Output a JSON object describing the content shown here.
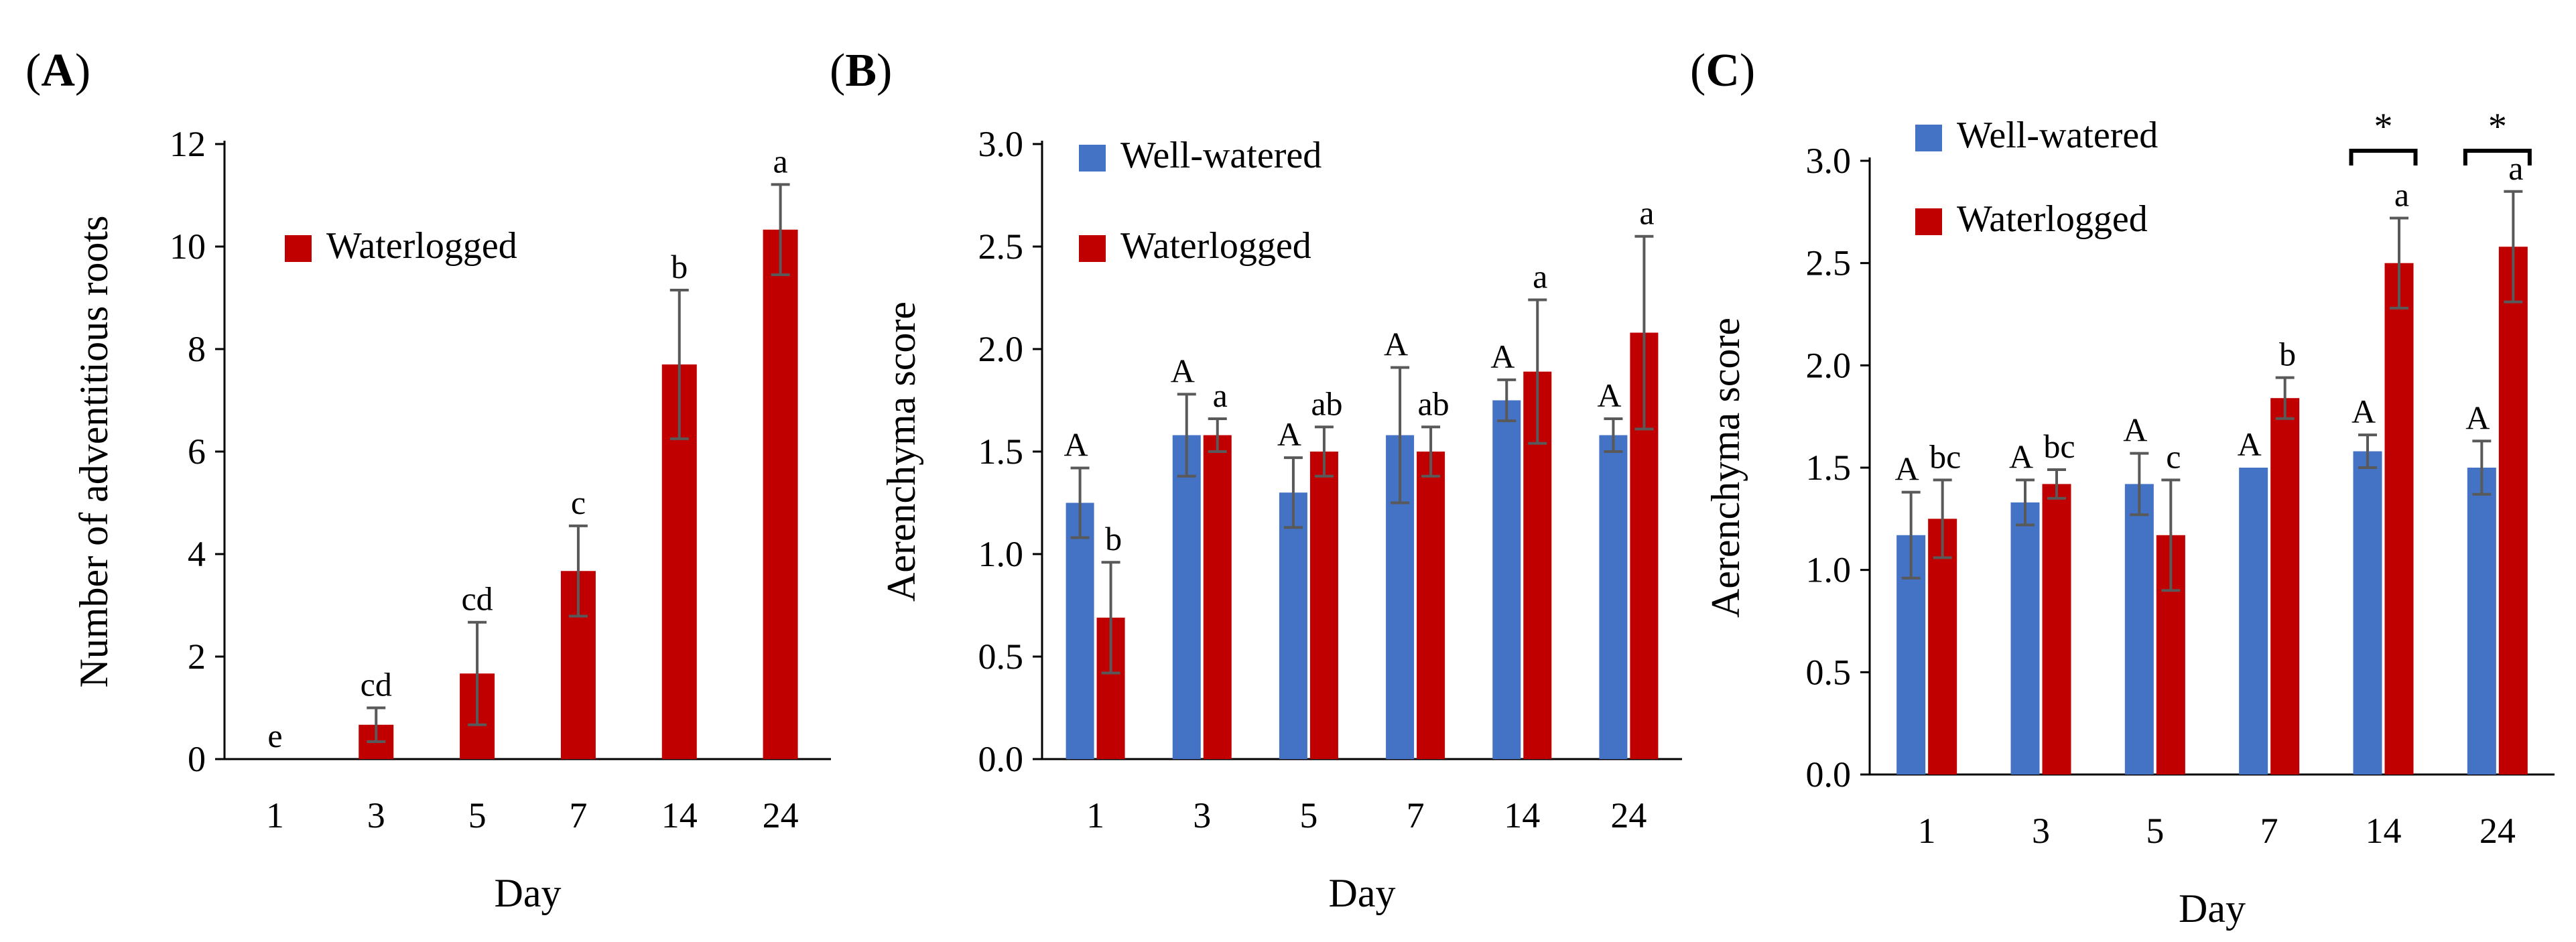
{
  "colors": {
    "well_watered": "#4472C4",
    "waterlogged": "#C00000",
    "error_bar": "#595959",
    "axis": "#000000"
  },
  "chart_data": [
    {
      "panel": "A",
      "type": "bar",
      "title": "",
      "xlabel": "Day",
      "ylabel": "Number of adventitious roots",
      "categories": [
        "1",
        "3",
        "5",
        "7",
        "14",
        "24"
      ],
      "ylim": [
        0,
        12
      ],
      "yticks": [
        "0",
        "2",
        "4",
        "6",
        "8",
        "10",
        "12"
      ],
      "legend_position": "upper-left",
      "series": [
        {
          "name": "Waterlogged",
          "color": "#C00000",
          "values": [
            0,
            0.67,
            1.67,
            3.67,
            7.7,
            10.33
          ],
          "errors": [
            0,
            0.33,
            1.0,
            0.88,
            1.45,
            0.88
          ],
          "letters": [
            "e",
            "cd",
            "cd",
            "c",
            "b",
            "a"
          ]
        }
      ],
      "annotations": []
    },
    {
      "panel": "B",
      "type": "bar",
      "title": "",
      "xlabel": "Day",
      "ylabel": "Aerenchyma score",
      "categories": [
        "1",
        "3",
        "5",
        "7",
        "14",
        "24"
      ],
      "ylim": [
        0,
        3
      ],
      "yticks": [
        "0.0",
        "0.5",
        "1.0",
        "1.5",
        "2.0",
        "2.5",
        "3.0"
      ],
      "legend_position": "upper-left",
      "series": [
        {
          "name": "Well-watered",
          "color": "#4472C4",
          "values": [
            1.25,
            1.58,
            1.3,
            1.58,
            1.75,
            1.58
          ],
          "errors": [
            0.17,
            0.2,
            0.17,
            0.33,
            0.1,
            0.08
          ],
          "letters": [
            "A",
            "A",
            "A",
            "A",
            "A",
            "A"
          ]
        },
        {
          "name": "Waterlogged",
          "color": "#C00000",
          "values": [
            0.69,
            1.58,
            1.5,
            1.5,
            1.89,
            2.08
          ],
          "errors": [
            0.27,
            0.08,
            0.12,
            0.12,
            0.35,
            0.47
          ],
          "letters": [
            "b",
            "a",
            "ab",
            "ab",
            "a",
            "a"
          ]
        }
      ],
      "annotations": []
    },
    {
      "panel": "C",
      "type": "bar",
      "title": "",
      "xlabel": "Day",
      "ylabel": "Aerenchyma score",
      "categories": [
        "1",
        "3",
        "5",
        "7",
        "14",
        "24"
      ],
      "ylim": [
        0,
        3
      ],
      "yticks": [
        "0.0",
        "0.5",
        "1.0",
        "1.5",
        "2.0",
        "2.5",
        "3.0"
      ],
      "legend_position": "upper-left",
      "series": [
        {
          "name": "Well-watered",
          "color": "#4472C4",
          "values": [
            1.17,
            1.33,
            1.42,
            1.5,
            1.58,
            1.5
          ],
          "errors": [
            0.21,
            0.11,
            0.15,
            0.0,
            0.08,
            0.13
          ],
          "letters": [
            "A",
            "A",
            "A",
            "A",
            "A",
            "A"
          ]
        },
        {
          "name": "Waterlogged",
          "color": "#C00000",
          "values": [
            1.25,
            1.42,
            1.17,
            1.84,
            2.5,
            2.58
          ],
          "errors": [
            0.19,
            0.07,
            0.27,
            0.1,
            0.22,
            0.27
          ],
          "letters": [
            "bc",
            "bc",
            "c",
            "b",
            "a",
            "a"
          ]
        }
      ],
      "annotations": [
        {
          "category": "14",
          "text": "*"
        },
        {
          "category": "24",
          "text": "*"
        }
      ]
    }
  ]
}
